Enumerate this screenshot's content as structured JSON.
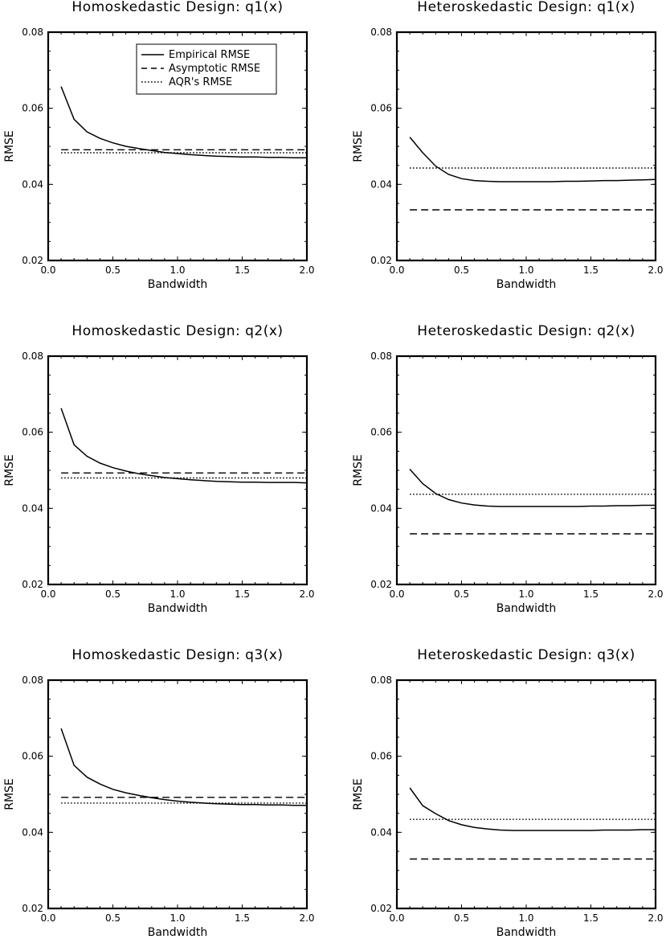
{
  "chart_data": [
    {
      "type": "line",
      "title": "Homoskedastic Design: q1(x)",
      "xlabel": "Bandwidth",
      "ylabel": "RMSE",
      "xlim": [
        0.0,
        2.0
      ],
      "ylim": [
        0.02,
        0.08
      ],
      "xticks": [
        "0.0",
        "0.5",
        "1.0",
        "1.5",
        "2.0"
      ],
      "yticks": [
        "0.02",
        "0.04",
        "0.06",
        "0.08"
      ],
      "legend": "top-center",
      "x": [
        0.1,
        0.2,
        0.3,
        0.4,
        0.5,
        0.6,
        0.7,
        0.8,
        0.9,
        1.0,
        1.1,
        1.2,
        1.3,
        1.4,
        1.5,
        1.6,
        1.7,
        1.8,
        1.9,
        2.0
      ],
      "series": [
        {
          "name": "Empirical RMSE",
          "style": "solid",
          "values": [
            0.0657,
            0.0571,
            0.0538,
            0.0521,
            0.0509,
            0.05,
            0.0494,
            0.0489,
            0.0484,
            0.0481,
            0.0478,
            0.0476,
            0.0474,
            0.0473,
            0.0472,
            0.0472,
            0.0471,
            0.0471,
            0.047,
            0.047
          ]
        },
        {
          "name": "Asymptotic RMSE",
          "style": "dashed",
          "values": [
            0.0491,
            0.0491,
            0.0491,
            0.0491,
            0.0491,
            0.0491,
            0.0491,
            0.0491,
            0.0491,
            0.0491,
            0.0491,
            0.0491,
            0.0491,
            0.0491,
            0.0491,
            0.0491,
            0.0491,
            0.0491,
            0.0491,
            0.0491
          ]
        },
        {
          "name": "AQR's RMSE",
          "style": "dotted",
          "values": [
            0.0483,
            0.0483,
            0.0483,
            0.0483,
            0.0483,
            0.0483,
            0.0483,
            0.0483,
            0.0483,
            0.0483,
            0.0483,
            0.0483,
            0.0483,
            0.0483,
            0.0483,
            0.0483,
            0.0483,
            0.0483,
            0.0483,
            0.0483
          ]
        }
      ]
    },
    {
      "type": "line",
      "title": "Heteroskedastic Design: q1(x)",
      "xlabel": "Bandwidth",
      "ylabel": "RMSE",
      "xlim": [
        0.0,
        2.0
      ],
      "ylim": [
        0.02,
        0.08
      ],
      "xticks": [
        "0.0",
        "0.5",
        "1.0",
        "1.5",
        "2.0"
      ],
      "yticks": [
        "0.02",
        "0.04",
        "0.06",
        "0.08"
      ],
      "x": [
        0.1,
        0.2,
        0.3,
        0.4,
        0.5,
        0.6,
        0.7,
        0.8,
        0.9,
        1.0,
        1.1,
        1.2,
        1.3,
        1.4,
        1.5,
        1.6,
        1.7,
        1.8,
        1.9,
        2.0
      ],
      "series": [
        {
          "name": "Empirical RMSE",
          "style": "solid",
          "values": [
            0.0524,
            0.0483,
            0.0448,
            0.0426,
            0.0415,
            0.041,
            0.0408,
            0.0407,
            0.0407,
            0.0407,
            0.0407,
            0.0407,
            0.0408,
            0.0408,
            0.0409,
            0.041,
            0.041,
            0.0411,
            0.0412,
            0.0413
          ]
        },
        {
          "name": "Asymptotic RMSE",
          "style": "dashed",
          "values": [
            0.0333,
            0.0333,
            0.0333,
            0.0333,
            0.0333,
            0.0333,
            0.0333,
            0.0333,
            0.0333,
            0.0333,
            0.0333,
            0.0333,
            0.0333,
            0.0333,
            0.0333,
            0.0333,
            0.0333,
            0.0333,
            0.0333,
            0.0333
          ]
        },
        {
          "name": "AQR's RMSE",
          "style": "dotted",
          "values": [
            0.0443,
            0.0443,
            0.0443,
            0.0443,
            0.0443,
            0.0443,
            0.0443,
            0.0443,
            0.0443,
            0.0443,
            0.0443,
            0.0443,
            0.0443,
            0.0443,
            0.0443,
            0.0443,
            0.0443,
            0.0443,
            0.0443,
            0.0443
          ]
        }
      ]
    },
    {
      "type": "line",
      "title": "Homoskedastic Design: q2(x)",
      "xlabel": "Bandwidth",
      "ylabel": "RMSE",
      "xlim": [
        0.0,
        2.0
      ],
      "ylim": [
        0.02,
        0.08
      ],
      "xticks": [
        "0.0",
        "0.5",
        "1.0",
        "1.5",
        "2.0"
      ],
      "yticks": [
        "0.02",
        "0.04",
        "0.06",
        "0.08"
      ],
      "x": [
        0.1,
        0.2,
        0.3,
        0.4,
        0.5,
        0.6,
        0.7,
        0.8,
        0.9,
        1.0,
        1.1,
        1.2,
        1.3,
        1.4,
        1.5,
        1.6,
        1.7,
        1.8,
        1.9,
        2.0
      ],
      "series": [
        {
          "name": "Empirical RMSE",
          "style": "solid",
          "values": [
            0.0663,
            0.0567,
            0.0537,
            0.0519,
            0.0507,
            0.0498,
            0.0491,
            0.0486,
            0.0481,
            0.0478,
            0.0475,
            0.0473,
            0.0471,
            0.047,
            0.0469,
            0.0469,
            0.0468,
            0.0468,
            0.0468,
            0.0467
          ]
        },
        {
          "name": "Asymptotic RMSE",
          "style": "dashed",
          "values": [
            0.0493,
            0.0493,
            0.0493,
            0.0493,
            0.0493,
            0.0493,
            0.0493,
            0.0493,
            0.0493,
            0.0493,
            0.0493,
            0.0493,
            0.0493,
            0.0493,
            0.0493,
            0.0493,
            0.0493,
            0.0493,
            0.0493,
            0.0493
          ]
        },
        {
          "name": "AQR's RMSE",
          "style": "dotted",
          "values": [
            0.048,
            0.048,
            0.048,
            0.048,
            0.048,
            0.048,
            0.048,
            0.048,
            0.048,
            0.048,
            0.048,
            0.048,
            0.048,
            0.048,
            0.048,
            0.048,
            0.048,
            0.048,
            0.048,
            0.048
          ]
        }
      ]
    },
    {
      "type": "line",
      "title": "Heteroskedastic Design: q2(x)",
      "xlabel": "Bandwidth",
      "ylabel": "RMSE",
      "xlim": [
        0.0,
        2.0
      ],
      "ylim": [
        0.02,
        0.08
      ],
      "xticks": [
        "0.0",
        "0.5",
        "1.0",
        "1.5",
        "2.0"
      ],
      "yticks": [
        "0.02",
        "0.04",
        "0.06",
        "0.08"
      ],
      "x": [
        0.1,
        0.2,
        0.3,
        0.4,
        0.5,
        0.6,
        0.7,
        0.8,
        0.9,
        1.0,
        1.1,
        1.2,
        1.3,
        1.4,
        1.5,
        1.6,
        1.7,
        1.8,
        1.9,
        2.0
      ],
      "series": [
        {
          "name": "Empirical RMSE",
          "style": "solid",
          "values": [
            0.0503,
            0.0465,
            0.0439,
            0.0423,
            0.0414,
            0.0409,
            0.0406,
            0.0405,
            0.0405,
            0.0405,
            0.0405,
            0.0405,
            0.0405,
            0.0405,
            0.0406,
            0.0406,
            0.0407,
            0.0407,
            0.0408,
            0.0408
          ]
        },
        {
          "name": "Asymptotic RMSE",
          "style": "dashed",
          "values": [
            0.0333,
            0.0333,
            0.0333,
            0.0333,
            0.0333,
            0.0333,
            0.0333,
            0.0333,
            0.0333,
            0.0333,
            0.0333,
            0.0333,
            0.0333,
            0.0333,
            0.0333,
            0.0333,
            0.0333,
            0.0333,
            0.0333,
            0.0333
          ]
        },
        {
          "name": "AQR's RMSE",
          "style": "dotted",
          "values": [
            0.0437,
            0.0437,
            0.0437,
            0.0437,
            0.0437,
            0.0437,
            0.0437,
            0.0437,
            0.0437,
            0.0437,
            0.0437,
            0.0437,
            0.0437,
            0.0437,
            0.0437,
            0.0437,
            0.0437,
            0.0437,
            0.0437,
            0.0437
          ]
        }
      ]
    },
    {
      "type": "line",
      "title": "Homoskedastic Design: q3(x)",
      "xlabel": "Bandwidth",
      "ylabel": "RMSE",
      "xlim": [
        0.0,
        2.0
      ],
      "ylim": [
        0.02,
        0.08
      ],
      "xticks": [
        "0.0",
        "0.5",
        "1.0",
        "1.5",
        "2.0"
      ],
      "yticks": [
        "0.02",
        "0.04",
        "0.06",
        "0.08"
      ],
      "x": [
        0.1,
        0.2,
        0.3,
        0.4,
        0.5,
        0.6,
        0.7,
        0.8,
        0.9,
        1.0,
        1.1,
        1.2,
        1.3,
        1.4,
        1.5,
        1.6,
        1.7,
        1.8,
        1.9,
        2.0
      ],
      "series": [
        {
          "name": "Empirical RMSE",
          "style": "solid",
          "values": [
            0.0673,
            0.0576,
            0.0545,
            0.0527,
            0.0513,
            0.0504,
            0.0497,
            0.0491,
            0.0486,
            0.0482,
            0.0479,
            0.0477,
            0.0475,
            0.0474,
            0.0473,
            0.0473,
            0.0472,
            0.0472,
            0.0471,
            0.0471
          ]
        },
        {
          "name": "Asymptotic RMSE",
          "style": "dashed",
          "values": [
            0.0492,
            0.0492,
            0.0492,
            0.0492,
            0.0492,
            0.0492,
            0.0492,
            0.0492,
            0.0492,
            0.0492,
            0.0492,
            0.0492,
            0.0492,
            0.0492,
            0.0492,
            0.0492,
            0.0492,
            0.0492,
            0.0492,
            0.0492
          ]
        },
        {
          "name": "AQR's RMSE",
          "style": "dotted",
          "values": [
            0.0477,
            0.0477,
            0.0477,
            0.0477,
            0.0477,
            0.0477,
            0.0477,
            0.0477,
            0.0477,
            0.0477,
            0.0477,
            0.0477,
            0.0477,
            0.0477,
            0.0477,
            0.0477,
            0.0477,
            0.0477,
            0.0477,
            0.0477
          ]
        }
      ]
    },
    {
      "type": "line",
      "title": "Heteroskedastic Design: q3(x)",
      "xlabel": "Bandwidth",
      "ylabel": "RMSE",
      "xlim": [
        0.0,
        2.0
      ],
      "ylim": [
        0.02,
        0.08
      ],
      "xticks": [
        "0.0",
        "0.5",
        "1.0",
        "1.5",
        "2.0"
      ],
      "yticks": [
        "0.02",
        "0.04",
        "0.06",
        "0.08"
      ],
      "x": [
        0.1,
        0.2,
        0.3,
        0.4,
        0.5,
        0.6,
        0.7,
        0.8,
        0.9,
        1.0,
        1.1,
        1.2,
        1.3,
        1.4,
        1.5,
        1.6,
        1.7,
        1.8,
        1.9,
        2.0
      ],
      "series": [
        {
          "name": "Empirical RMSE",
          "style": "solid",
          "values": [
            0.0517,
            0.047,
            0.0449,
            0.0431,
            0.042,
            0.0413,
            0.0409,
            0.0406,
            0.0405,
            0.0405,
            0.0405,
            0.0405,
            0.0405,
            0.0405,
            0.0405,
            0.0406,
            0.0406,
            0.0406,
            0.0407,
            0.0407
          ]
        },
        {
          "name": "Asymptotic RMSE",
          "style": "dashed",
          "values": [
            0.033,
            0.033,
            0.033,
            0.033,
            0.033,
            0.033,
            0.033,
            0.033,
            0.033,
            0.033,
            0.033,
            0.033,
            0.033,
            0.033,
            0.033,
            0.033,
            0.033,
            0.033,
            0.033,
            0.033
          ]
        },
        {
          "name": "AQR's RMSE",
          "style": "dotted",
          "values": [
            0.0434,
            0.0434,
            0.0434,
            0.0434,
            0.0434,
            0.0434,
            0.0434,
            0.0434,
            0.0434,
            0.0434,
            0.0434,
            0.0434,
            0.0434,
            0.0434,
            0.0434,
            0.0434,
            0.0434,
            0.0434,
            0.0434,
            0.0434
          ]
        }
      ]
    }
  ]
}
